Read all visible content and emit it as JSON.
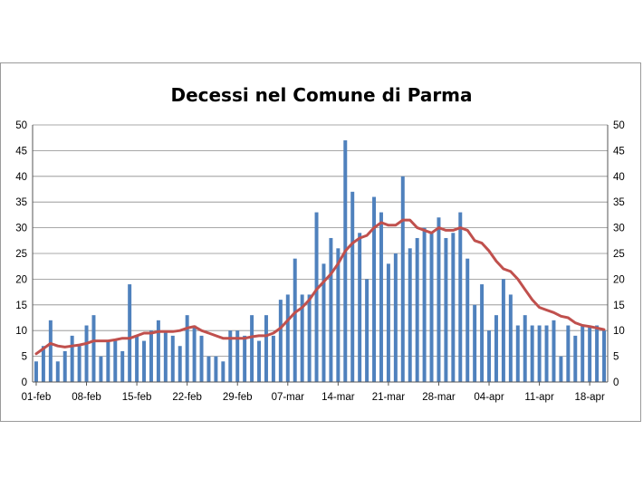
{
  "chart_data": {
    "type": "bar",
    "title": "Decessi nel Comune di Parma",
    "xlabel": "",
    "ylabel": "",
    "ylim": [
      0,
      50
    ],
    "yticks": [
      0,
      5,
      10,
      15,
      20,
      25,
      30,
      35,
      40,
      45,
      50
    ],
    "y2ticks": [
      0,
      5,
      10,
      15,
      20,
      25,
      30,
      35,
      40,
      45,
      50
    ],
    "grid": true,
    "xtick_labels": [
      "01-feb",
      "08-feb",
      "15-feb",
      "22-feb",
      "29-feb",
      "07-mar",
      "14-mar",
      "21-mar",
      "28-mar",
      "04-apr",
      "11-apr",
      "18-apr"
    ],
    "categories": [
      "01-feb",
      "02-feb",
      "03-feb",
      "04-feb",
      "05-feb",
      "06-feb",
      "07-feb",
      "08-feb",
      "09-feb",
      "10-feb",
      "11-feb",
      "12-feb",
      "13-feb",
      "14-feb",
      "15-feb",
      "16-feb",
      "17-feb",
      "18-feb",
      "19-feb",
      "20-feb",
      "21-feb",
      "22-feb",
      "23-feb",
      "24-feb",
      "25-feb",
      "26-feb",
      "27-feb",
      "28-feb",
      "29-feb",
      "01-mar",
      "02-mar",
      "03-mar",
      "04-mar",
      "05-mar",
      "06-mar",
      "07-mar",
      "08-mar",
      "09-mar",
      "10-mar",
      "11-mar",
      "12-mar",
      "13-mar",
      "14-mar",
      "15-mar",
      "16-mar",
      "17-mar",
      "18-mar",
      "19-mar",
      "20-mar",
      "21-mar",
      "22-mar",
      "23-mar",
      "24-mar",
      "25-mar",
      "26-mar",
      "27-mar",
      "28-mar",
      "29-mar",
      "30-mar",
      "31-mar",
      "01-apr",
      "02-apr",
      "03-apr",
      "04-apr",
      "05-apr",
      "06-apr",
      "07-apr",
      "08-apr",
      "09-apr",
      "10-apr",
      "11-apr",
      "12-apr",
      "13-apr",
      "14-apr",
      "15-apr",
      "16-apr",
      "17-apr",
      "18-apr",
      "19-apr",
      "20-apr"
    ],
    "series": [
      {
        "type": "bar",
        "color": "#4f81bd",
        "values": [
          4,
          7,
          12,
          4,
          6,
          9,
          7,
          11,
          13,
          5,
          8,
          8,
          6,
          19,
          9,
          8,
          10,
          12,
          10,
          9,
          7,
          13,
          11,
          9,
          5,
          5,
          4,
          10,
          10,
          9,
          13,
          8,
          13,
          9,
          16,
          17,
          24,
          17,
          17,
          33,
          23,
          28,
          26,
          47,
          37,
          29,
          20,
          36,
          33,
          23,
          25,
          40,
          26,
          28,
          30,
          29,
          32,
          28,
          29,
          33,
          24,
          15,
          19,
          10,
          13,
          20,
          17,
          11,
          13,
          11,
          11,
          11,
          12,
          5,
          11,
          9,
          11,
          11,
          11,
          10
        ]
      },
      {
        "type": "line",
        "color": "#c0504d",
        "values": [
          5.5,
          6.5,
          7.5,
          7.0,
          6.8,
          7.0,
          7.2,
          7.5,
          8.0,
          8.0,
          8.0,
          8.2,
          8.5,
          8.5,
          9.0,
          9.5,
          9.5,
          9.8,
          9.8,
          9.8,
          10.0,
          10.5,
          10.8,
          10.0,
          9.5,
          9.0,
          8.5,
          8.5,
          8.5,
          8.5,
          8.8,
          9.0,
          9.0,
          9.5,
          10.5,
          12.0,
          13.5,
          14.5,
          16.0,
          18.0,
          19.5,
          21.0,
          23.0,
          25.5,
          27.0,
          28.0,
          28.5,
          30.0,
          31.0,
          30.5,
          30.5,
          31.5,
          31.5,
          30.0,
          29.5,
          29.0,
          30.0,
          29.5,
          29.5,
          30.0,
          29.5,
          27.5,
          27.0,
          25.5,
          23.5,
          22.0,
          21.5,
          20.0,
          18.0,
          16.0,
          14.5,
          14.0,
          13.5,
          12.8,
          12.5,
          11.5,
          11.0,
          10.8,
          10.5,
          10.2
        ]
      }
    ]
  }
}
